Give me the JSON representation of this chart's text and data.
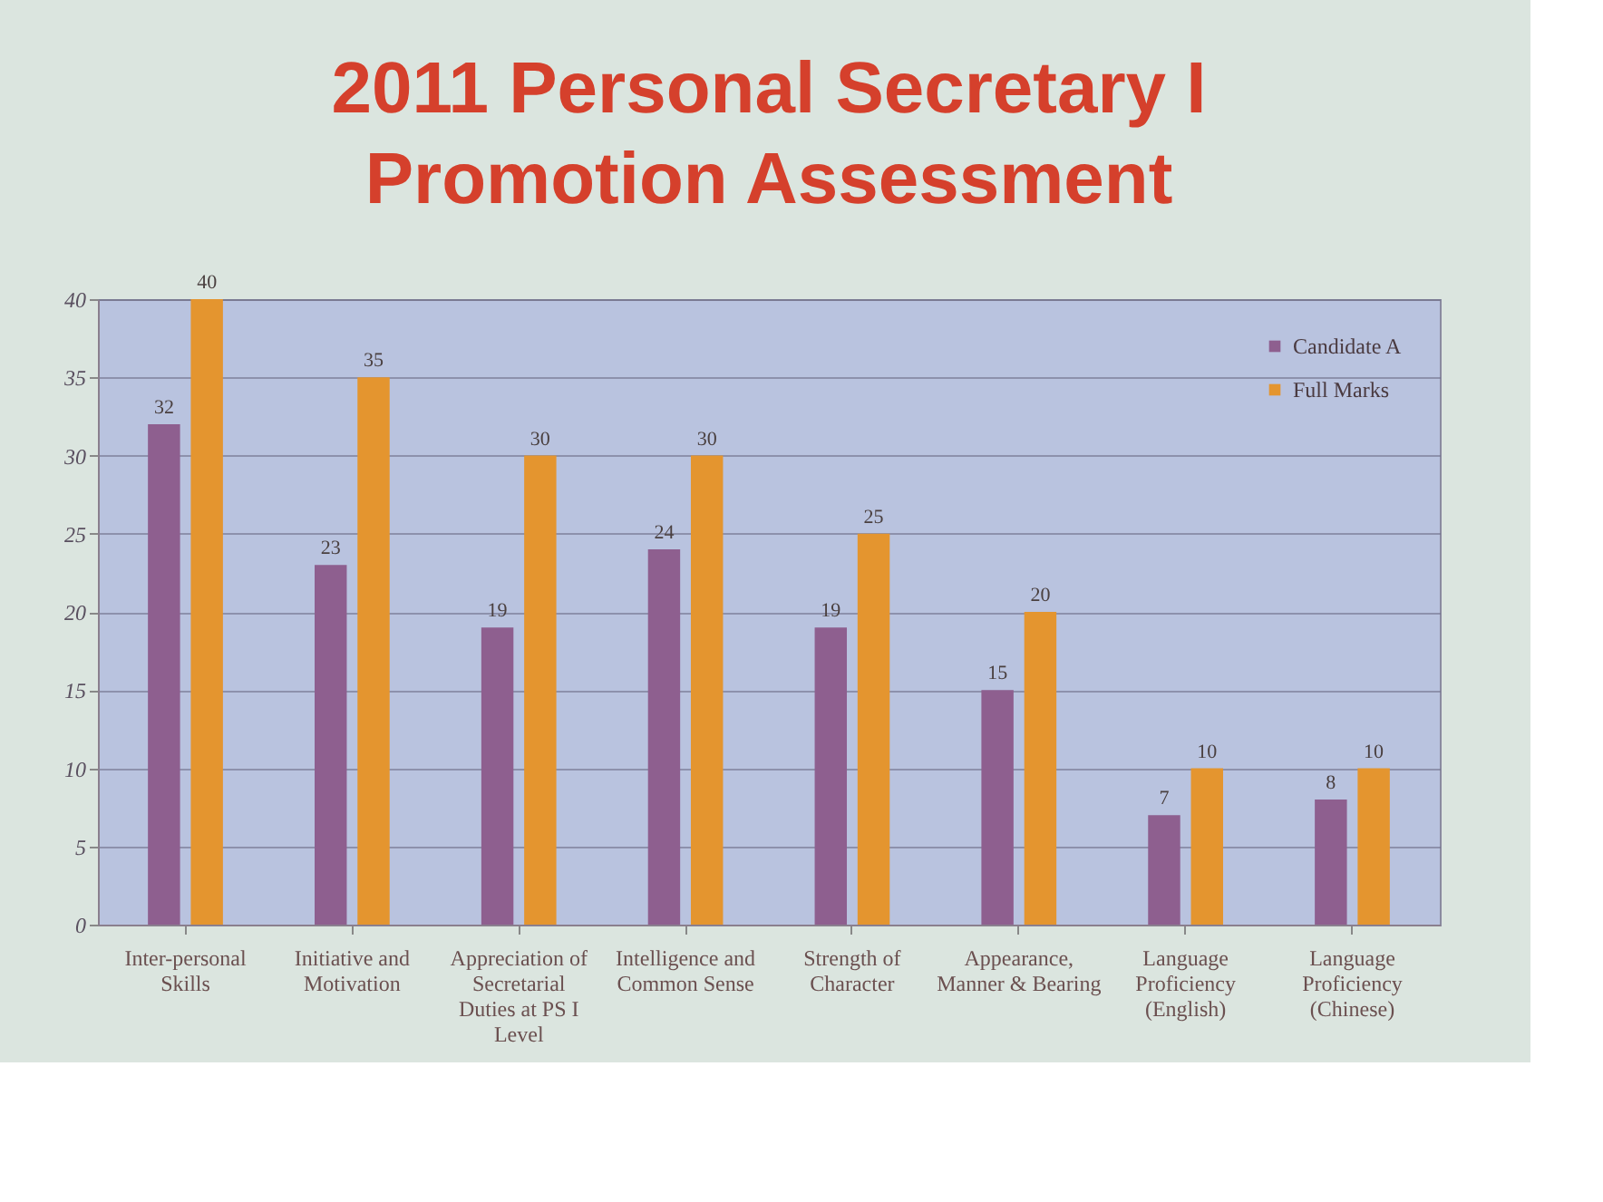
{
  "chart_data": {
    "type": "bar",
    "title": "2011 Personal Secretary I Promotion Assessment",
    "categories": [
      "Inter-personal Skills",
      "Initiative and Motivation",
      "Appreciation of Secretarial Duties at PS I Level",
      "Intelligence and Common Sense",
      "Strength of Character",
      "Appearance, Manner & Bearing",
      "Language Proficiency (English)",
      "Language Proficiency (Chinese)"
    ],
    "series": [
      {
        "name": "Candidate A",
        "color": "#8e5f8f",
        "values": [
          32,
          23,
          19,
          24,
          19,
          15,
          7,
          8
        ]
      },
      {
        "name": "Full Marks",
        "color": "#e4952f",
        "values": [
          40,
          35,
          30,
          30,
          25,
          20,
          10,
          10
        ]
      }
    ],
    "ylim": [
      0,
      40
    ],
    "yticks": [
      0,
      5,
      10,
      15,
      20,
      25,
      30,
      35,
      40
    ],
    "grid": "y",
    "legend": "top right",
    "data_labels": true
  }
}
